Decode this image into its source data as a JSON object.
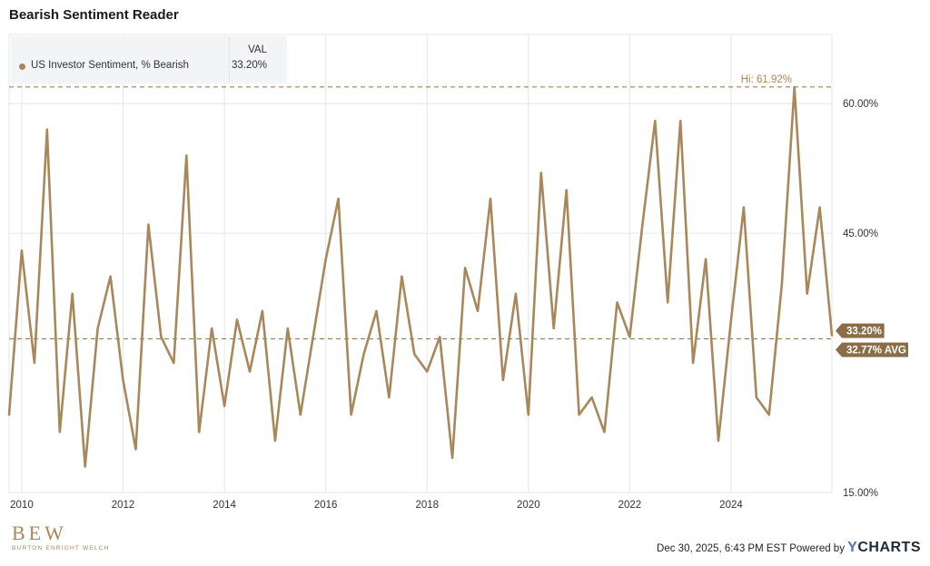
{
  "header": {
    "title": "Bearish Sentiment Reader"
  },
  "legend": {
    "value_header": "VAL",
    "series_name": "US Investor Sentiment, % Bearish",
    "value": "33.20%"
  },
  "footer": {
    "logo_mark": "BEW",
    "logo_text": "BURTON ENRIGHT WELCH",
    "timestamp": "Dec 30, 2025, 6:43 PM EST",
    "powered_by": "Powered by",
    "brand_y": "Y",
    "brand_rest": "CHARTS"
  },
  "colors": {
    "series": "#a8875a",
    "grid": "#e6e6e6",
    "badge": "#8a6e48"
  },
  "chart_data": {
    "type": "line",
    "title": "Bearish Sentiment Reader",
    "series": [
      {
        "name": "US Investor Sentiment, % Bearish",
        "x": [
          2009.75,
          2010.0,
          2010.25,
          2010.5,
          2010.75,
          2011.0,
          2011.25,
          2011.5,
          2011.75,
          2012.0,
          2012.25,
          2012.5,
          2012.75,
          2013.0,
          2013.25,
          2013.5,
          2013.75,
          2014.0,
          2014.25,
          2014.5,
          2014.75,
          2015.0,
          2015.25,
          2015.5,
          2015.75,
          2016.0,
          2016.25,
          2016.5,
          2016.75,
          2017.0,
          2017.25,
          2017.5,
          2017.75,
          2018.0,
          2018.25,
          2018.5,
          2018.75,
          2019.0,
          2019.25,
          2019.5,
          2019.75,
          2020.0,
          2020.25,
          2020.5,
          2020.75,
          2021.0,
          2021.25,
          2021.5,
          2021.75,
          2022.0,
          2022.25,
          2022.5,
          2022.75,
          2023.0,
          2023.25,
          2023.5,
          2023.75,
          2024.0,
          2024.25,
          2024.5,
          2024.75,
          2025.0,
          2025.25,
          2025.5,
          2025.75,
          2025.99
        ],
        "values": [
          24,
          43,
          30,
          57,
          22,
          38,
          18,
          34,
          40,
          28,
          20,
          46,
          33,
          30,
          54,
          22,
          34,
          25,
          35,
          29,
          36,
          21,
          34,
          24,
          33,
          42,
          49,
          24,
          31,
          36,
          26,
          40,
          31,
          29,
          33,
          19,
          41,
          36,
          49,
          28,
          38,
          24,
          52,
          34,
          50,
          24,
          26,
          22,
          37,
          33,
          46,
          58,
          37,
          58,
          30,
          42,
          21,
          35,
          48,
          26,
          24,
          39,
          61.9,
          38,
          48,
          33.2
        ]
      }
    ],
    "xlim": [
      2009.75,
      2025.99
    ],
    "xticks": [
      "2010",
      "2012",
      "2014",
      "2016",
      "2018",
      "2020",
      "2022",
      "2024"
    ],
    "ylim": [
      15,
      68
    ],
    "yticks": [
      "15.00%",
      "45.00%",
      "60.00%"
    ],
    "grid": true,
    "legend_position": "top-left",
    "annotations": {
      "high": {
        "label": "Hi: 61.92%",
        "value": 61.92
      },
      "last": {
        "label": "33.20%",
        "value": 33.2
      },
      "average": {
        "label": "32.77% AVG",
        "value": 32.77
      }
    }
  }
}
